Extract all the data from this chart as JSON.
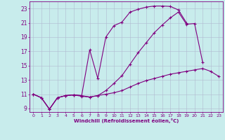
{
  "xlabel": "Windchill (Refroidissement éolien,°C)",
  "bg_color": "#c8ecec",
  "line_color": "#800080",
  "grid_color": "#b0b8d0",
  "xlim": [
    -0.5,
    23.5
  ],
  "ylim": [
    8.5,
    24.0
  ],
  "yticks": [
    9,
    11,
    13,
    15,
    17,
    19,
    21,
    23
  ],
  "xticks": [
    0,
    1,
    2,
    3,
    4,
    5,
    6,
    7,
    8,
    9,
    10,
    11,
    12,
    13,
    14,
    15,
    16,
    17,
    18,
    19,
    20,
    21,
    22,
    23
  ],
  "line1_x": [
    0,
    1,
    2,
    3,
    4,
    5,
    6,
    7,
    8,
    9,
    10,
    11,
    12,
    13,
    14,
    15,
    16,
    17,
    18,
    19
  ],
  "line1_y": [
    11.0,
    10.5,
    8.9,
    10.5,
    10.8,
    10.9,
    10.8,
    17.2,
    13.2,
    19.0,
    20.6,
    21.1,
    22.5,
    22.9,
    23.2,
    23.35,
    23.35,
    23.3,
    22.8,
    21.0
  ],
  "line2_x": [
    0,
    1,
    2,
    3,
    4,
    5,
    6,
    7,
    8,
    9,
    10,
    11,
    12,
    13,
    14,
    15,
    16,
    17,
    18,
    19,
    20,
    21
  ],
  "line2_y": [
    11.0,
    10.5,
    8.9,
    10.5,
    10.8,
    10.9,
    10.8,
    10.6,
    10.8,
    11.5,
    12.5,
    13.6,
    15.2,
    16.8,
    18.2,
    19.6,
    20.7,
    21.7,
    22.5,
    20.8,
    20.9,
    15.5
  ],
  "line3_x": [
    0,
    1,
    2,
    3,
    4,
    5,
    6,
    7,
    8,
    9,
    10,
    11,
    12,
    13,
    14,
    15,
    16,
    17,
    18,
    19,
    20,
    21,
    22,
    23
  ],
  "line3_y": [
    11.0,
    10.5,
    8.9,
    10.5,
    10.8,
    10.9,
    10.7,
    10.6,
    10.8,
    11.0,
    11.2,
    11.5,
    12.0,
    12.5,
    12.9,
    13.2,
    13.5,
    13.8,
    14.0,
    14.2,
    14.4,
    14.6,
    14.2,
    13.5
  ],
  "figsize": [
    3.2,
    2.0
  ],
  "dpi": 100
}
